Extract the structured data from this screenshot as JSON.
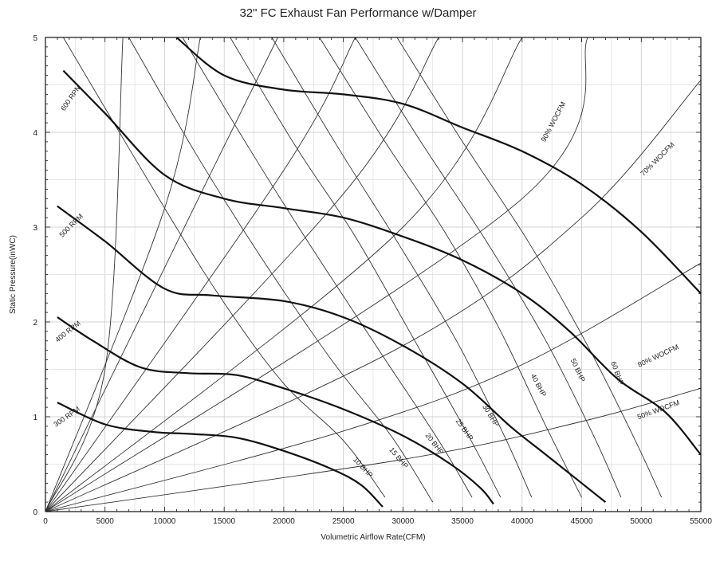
{
  "chart_data": {
    "type": "line",
    "title": "32\" FC Exhaust Fan Performance w/Damper",
    "xlabel": "Volumetric Airflow Rate(CFM)",
    "ylabel": "Static Pressure(inWC)",
    "xlim": [
      0,
      55000
    ],
    "ylim": [
      0,
      5
    ],
    "x_ticks": [
      0,
      5000,
      10000,
      15000,
      20000,
      25000,
      30000,
      35000,
      40000,
      45000,
      50000,
      55000
    ],
    "y_ticks": [
      0,
      1,
      2,
      3,
      4,
      5
    ],
    "grid": true,
    "rpm_curves": [
      {
        "name": "300 RPM",
        "points": [
          [
            1000,
            1.15
          ],
          [
            5000,
            0.92
          ],
          [
            9000,
            0.84
          ],
          [
            12000,
            0.82
          ],
          [
            16000,
            0.78
          ],
          [
            20000,
            0.64
          ],
          [
            24000,
            0.45
          ],
          [
            26500,
            0.28
          ],
          [
            28300,
            0.05
          ]
        ]
      },
      {
        "name": "400 RPM",
        "points": [
          [
            1000,
            2.05
          ],
          [
            4000,
            1.8
          ],
          [
            8000,
            1.52
          ],
          [
            12000,
            1.46
          ],
          [
            16000,
            1.44
          ],
          [
            20000,
            1.3
          ],
          [
            25000,
            1.08
          ],
          [
            30000,
            0.8
          ],
          [
            34000,
            0.5
          ],
          [
            36500,
            0.25
          ],
          [
            37600,
            0.08
          ]
        ]
      },
      {
        "name": "500 RPM",
        "points": [
          [
            1000,
            3.22
          ],
          [
            5000,
            2.85
          ],
          [
            10000,
            2.35
          ],
          [
            14000,
            2.28
          ],
          [
            20000,
            2.22
          ],
          [
            25000,
            2.05
          ],
          [
            30000,
            1.75
          ],
          [
            35000,
            1.35
          ],
          [
            39000,
            0.9
          ],
          [
            42000,
            0.6
          ],
          [
            45000,
            0.3
          ],
          [
            47000,
            0.1
          ]
        ]
      },
      {
        "name": "600 RPM",
        "points": [
          [
            1500,
            4.65
          ],
          [
            5000,
            4.2
          ],
          [
            10000,
            3.55
          ],
          [
            15000,
            3.3
          ],
          [
            20000,
            3.2
          ],
          [
            25000,
            3.1
          ],
          [
            30000,
            2.9
          ],
          [
            35000,
            2.65
          ],
          [
            40000,
            2.3
          ],
          [
            44000,
            1.9
          ],
          [
            48000,
            1.4
          ],
          [
            52000,
            1.05
          ],
          [
            55000,
            0.6
          ]
        ]
      },
      {
        "name": "",
        "points": [
          [
            11000,
            5.0
          ],
          [
            15000,
            4.6
          ],
          [
            20000,
            4.45
          ],
          [
            25000,
            4.4
          ],
          [
            30000,
            4.3
          ],
          [
            35000,
            4.05
          ],
          [
            40000,
            3.8
          ],
          [
            45000,
            3.45
          ],
          [
            50000,
            2.95
          ],
          [
            55000,
            2.3
          ]
        ]
      }
    ],
    "wocfm_lines": [
      {
        "name": "",
        "points": [
          [
            0,
            0
          ],
          [
            5000,
            1.5
          ],
          [
            6500,
            5.0
          ]
        ]
      },
      {
        "name": "",
        "points": [
          [
            0,
            0
          ],
          [
            10000,
            3.2
          ],
          [
            13000,
            5.0
          ]
        ]
      },
      {
        "name": "",
        "points": [
          [
            0,
            0
          ],
          [
            14000,
            3.6
          ],
          [
            19500,
            5.0
          ]
        ]
      },
      {
        "name": "",
        "points": [
          [
            0,
            0
          ],
          [
            20000,
            3.6
          ],
          [
            26000,
            5.0
          ]
        ]
      },
      {
        "name": "",
        "points": [
          [
            0,
            0
          ],
          [
            25000,
            3.35
          ],
          [
            33000,
            5.0
          ]
        ]
      },
      {
        "name": "",
        "points": [
          [
            0,
            0
          ],
          [
            30000,
            3.0
          ],
          [
            40000,
            5.0
          ]
        ]
      },
      {
        "name": "",
        "points": [
          [
            0,
            0
          ],
          [
            40000,
            3.3
          ],
          [
            45500,
            5.0
          ]
        ]
      },
      {
        "name": "",
        "points": [
          [
            0,
            0
          ],
          [
            30000,
            1.75
          ],
          [
            45000,
            3.1
          ],
          [
            55000,
            4.55
          ]
        ]
      },
      {
        "name": "",
        "points": [
          [
            0,
            0
          ],
          [
            25000,
            0.85
          ],
          [
            40000,
            1.55
          ],
          [
            55000,
            2.62
          ]
        ]
      },
      {
        "name": "",
        "points": [
          [
            0,
            0
          ],
          [
            30000,
            0.55
          ],
          [
            45000,
            0.95
          ],
          [
            55000,
            1.3
          ]
        ]
      }
    ],
    "bhp_lines": [
      {
        "name": "",
        "points": [
          [
            1500,
            5.0
          ],
          [
            10000,
            3.2
          ],
          [
            15000,
            2.2
          ],
          [
            20000,
            1.35
          ],
          [
            25000,
            0.75
          ],
          [
            28500,
            0.15
          ]
        ]
      },
      {
        "name": "",
        "points": [
          [
            7000,
            5.0
          ],
          [
            12500,
            3.8
          ],
          [
            18000,
            2.7
          ],
          [
            24000,
            1.6
          ],
          [
            29000,
            0.8
          ],
          [
            32500,
            0.1
          ]
        ]
      },
      {
        "name": "",
        "points": [
          [
            11500,
            5.0
          ],
          [
            17000,
            3.85
          ],
          [
            22000,
            2.85
          ],
          [
            28000,
            1.7
          ],
          [
            33000,
            0.75
          ],
          [
            35800,
            0.15
          ]
        ]
      },
      {
        "name": "",
        "points": [
          [
            15500,
            5.0
          ],
          [
            21000,
            3.85
          ],
          [
            26000,
            2.9
          ],
          [
            31000,
            1.8
          ],
          [
            35500,
            0.8
          ],
          [
            38200,
            0.15
          ]
        ]
      },
      {
        "name": "",
        "points": [
          [
            19000,
            5.0
          ],
          [
            24500,
            3.85
          ],
          [
            29500,
            2.85
          ],
          [
            34500,
            1.8
          ],
          [
            38500,
            0.8
          ],
          [
            40800,
            0.15
          ]
        ]
      },
      {
        "name": "",
        "points": [
          [
            23000,
            5.0
          ],
          [
            28500,
            3.9
          ],
          [
            33500,
            2.95
          ],
          [
            38000,
            1.95
          ],
          [
            42000,
            0.9
          ],
          [
            45000,
            0.15
          ]
        ]
      },
      {
        "name": "",
        "points": [
          [
            26000,
            5.0
          ],
          [
            31500,
            3.9
          ],
          [
            37000,
            2.85
          ],
          [
            42000,
            1.8
          ],
          [
            46000,
            0.8
          ],
          [
            48300,
            0.15
          ]
        ]
      },
      {
        "name": "",
        "points": [
          [
            29500,
            5.0
          ],
          [
            35000,
            3.9
          ],
          [
            40500,
            2.85
          ],
          [
            45500,
            1.75
          ],
          [
            49500,
            0.75
          ],
          [
            51700,
            0.15
          ]
        ]
      }
    ],
    "annotations": [
      {
        "text": "600 RPM",
        "x": 2300,
        "y": 4.35,
        "angle": -55
      },
      {
        "text": "500 RPM",
        "x": 2300,
        "y": 3.0,
        "angle": -45
      },
      {
        "text": "400 RPM",
        "x": 2000,
        "y": 1.88,
        "angle": -38
      },
      {
        "text": "300 RPM",
        "x": 1900,
        "y": 0.98,
        "angle": -35
      },
      {
        "text": "90% WOCFM",
        "x": 42800,
        "y": 4.1,
        "angle": -62
      },
      {
        "text": "70% WOCFM",
        "x": 51500,
        "y": 3.7,
        "angle": -45
      },
      {
        "text": "80% WOCFM",
        "x": 51500,
        "y": 1.62,
        "angle": -25
      },
      {
        "text": "50% WOCFM",
        "x": 51500,
        "y": 1.05,
        "angle": -20
      },
      {
        "text": "60 BHP",
        "x": 47800,
        "y": 1.45,
        "angle": 70
      },
      {
        "text": "50 BHP",
        "x": 44500,
        "y": 1.48,
        "angle": 65
      },
      {
        "text": "40 BHP",
        "x": 41200,
        "y": 1.32,
        "angle": 62
      },
      {
        "text": "30 BHP",
        "x": 37200,
        "y": 1.0,
        "angle": 58
      },
      {
        "text": "25 BHP",
        "x": 35000,
        "y": 0.85,
        "angle": 55
      },
      {
        "text": "20 BHP",
        "x": 32500,
        "y": 0.7,
        "angle": 52
      },
      {
        "text": "15 BHP",
        "x": 29500,
        "y": 0.55,
        "angle": 50
      },
      {
        "text": "10 BHP",
        "x": 26500,
        "y": 0.45,
        "angle": 47
      }
    ]
  }
}
